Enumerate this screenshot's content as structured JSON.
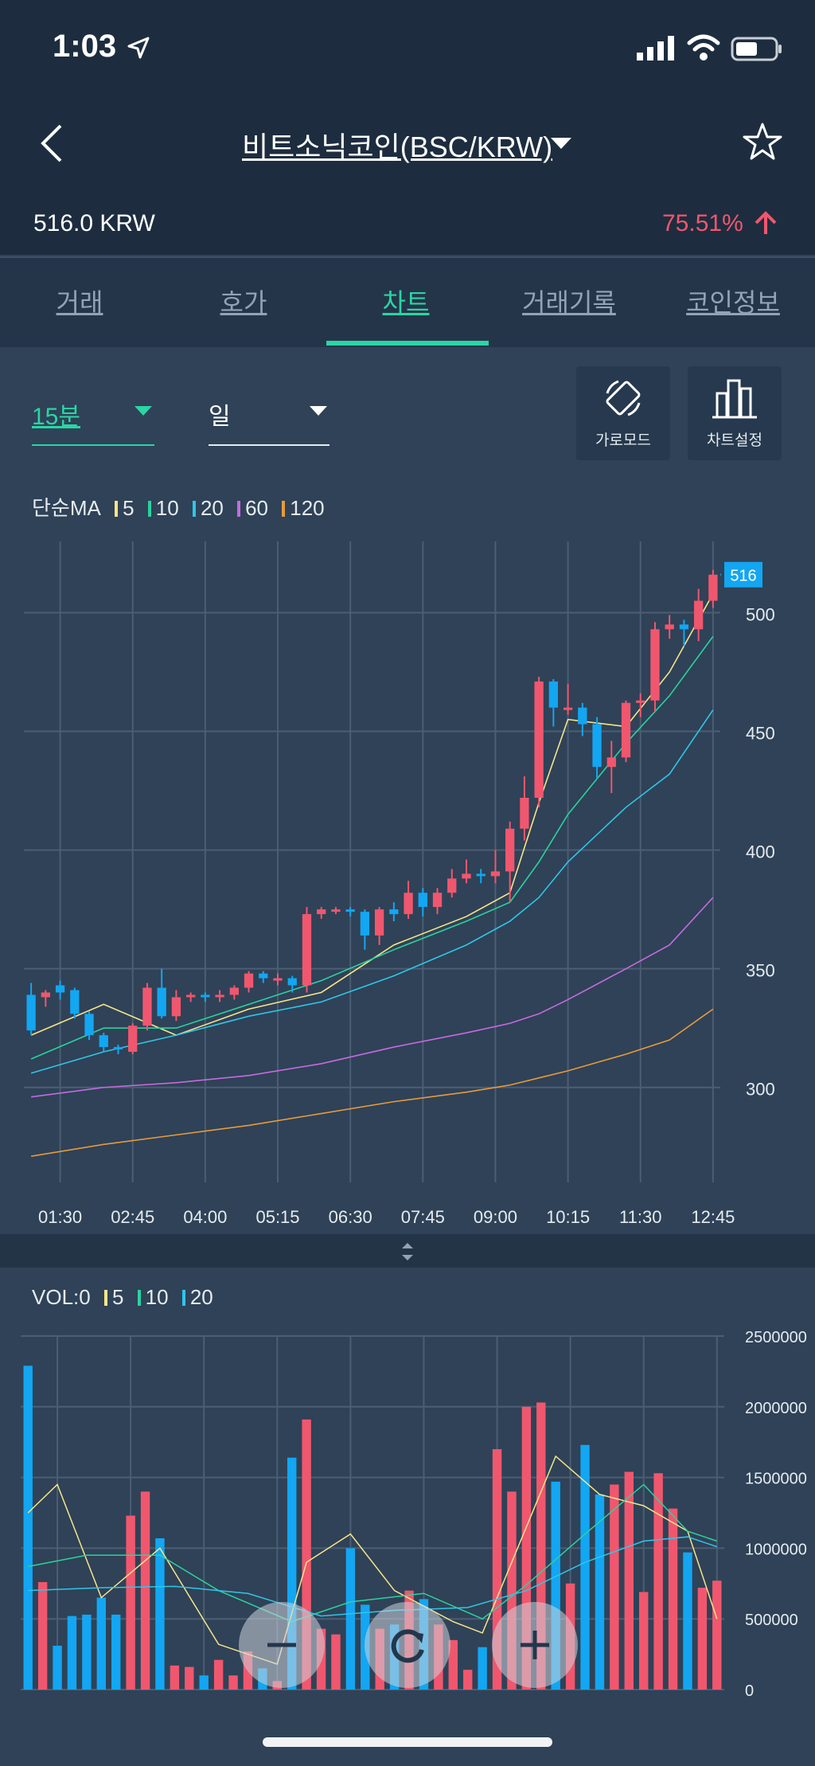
{
  "status_bar": {
    "time": "1:03"
  },
  "header": {
    "title": "비트소닉코인(BSC/KRW)",
    "price": "516.0 KRW",
    "change": "75.51%"
  },
  "tabs": [
    "거래",
    "호가",
    "차트",
    "거래기록",
    "코인정보"
  ],
  "active_tab": "차트",
  "controls": {
    "interval": "15분",
    "period": "일",
    "landscape_label": "가로모드",
    "settings_label": "차트설정"
  },
  "price_legend": {
    "label": "단순MA",
    "items": [
      "5",
      "10",
      "20",
      "60",
      "120"
    ]
  },
  "volume_legend": {
    "label": "VOL:0",
    "items": [
      "5",
      "10",
      "20"
    ]
  },
  "colors": {
    "up": "#f0576e",
    "down": "#13a6f2",
    "accent": "#29d6a4",
    "ma5": "#f7e58a",
    "ma10": "#2bd2a0",
    "ma20": "#2fc6e8",
    "ma60": "#c56ae0",
    "ma120": "#e89a3c"
  },
  "chart_data": [
    {
      "type": "candlestick",
      "x_ticks": [
        "01:30",
        "02:45",
        "04:00",
        "05:15",
        "06:30",
        "07:45",
        "09:00",
        "10:15",
        "11:30",
        "12:45"
      ],
      "y_ticks": [
        "300",
        "350",
        "400",
        "450",
        "500"
      ],
      "last_price_label": "516",
      "ylim": [
        260,
        530
      ],
      "candles": [
        [
          339,
          324,
          344,
          322
        ],
        [
          338,
          340,
          341,
          334
        ],
        [
          343,
          340,
          345,
          337
        ],
        [
          341,
          331,
          342,
          329
        ],
        [
          331,
          322,
          332,
          320
        ],
        [
          322,
          317,
          323,
          315
        ],
        [
          317,
          316,
          318,
          314
        ],
        [
          315,
          326,
          327,
          314
        ],
        [
          326,
          342,
          344,
          324
        ],
        [
          342,
          330,
          350,
          329
        ],
        [
          330,
          338,
          341,
          328
        ],
        [
          338,
          339,
          340,
          336
        ],
        [
          339,
          338,
          340,
          336
        ],
        [
          338,
          339,
          341,
          336
        ],
        [
          339,
          342,
          343,
          337
        ],
        [
          342,
          348,
          349,
          340
        ],
        [
          348,
          346,
          349,
          344
        ],
        [
          346,
          346,
          348,
          343
        ],
        [
          346,
          343,
          347,
          340
        ],
        [
          343,
          373,
          376,
          340
        ],
        [
          373,
          375,
          376,
          371
        ],
        [
          375,
          375,
          376,
          373
        ],
        [
          375,
          374,
          376,
          372
        ],
        [
          374,
          364,
          375,
          358
        ],
        [
          364,
          375,
          376,
          360
        ],
        [
          375,
          373,
          378,
          370
        ],
        [
          373,
          382,
          387,
          371
        ],
        [
          382,
          376,
          384,
          372
        ],
        [
          376,
          382,
          384,
          373
        ],
        [
          382,
          388,
          392,
          380
        ],
        [
          388,
          390,
          396,
          386
        ],
        [
          390,
          389,
          392,
          386
        ],
        [
          389,
          391,
          400,
          386
        ],
        [
          391,
          409,
          412,
          378
        ],
        [
          409,
          422,
          431,
          404
        ],
        [
          422,
          471,
          473,
          418
        ],
        [
          471,
          460,
          472,
          452
        ],
        [
          460,
          460,
          470,
          457
        ],
        [
          460,
          453,
          462,
          448
        ],
        [
          453,
          435,
          456,
          430
        ],
        [
          435,
          439,
          446,
          424
        ],
        [
          439,
          462,
          463,
          437
        ],
        [
          462,
          463,
          466,
          456
        ],
        [
          463,
          493,
          496,
          458
        ],
        [
          493,
          495,
          499,
          489
        ],
        [
          495,
          493,
          497,
          486
        ],
        [
          493,
          505,
          510,
          488
        ],
        [
          505,
          516,
          518,
          502
        ]
      ],
      "ma": {
        "5": [
          [
            0,
            322
          ],
          [
            5,
            335
          ],
          [
            10,
            322
          ],
          [
            15,
            333
          ],
          [
            20,
            340
          ],
          [
            25,
            360
          ],
          [
            30,
            372
          ],
          [
            33,
            382
          ],
          [
            35,
            420
          ],
          [
            37,
            455
          ],
          [
            41,
            452
          ],
          [
            44,
            475
          ],
          [
            47,
            508
          ]
        ],
        "10": [
          [
            0,
            312
          ],
          [
            5,
            325
          ],
          [
            10,
            325
          ],
          [
            15,
            335
          ],
          [
            20,
            345
          ],
          [
            25,
            358
          ],
          [
            30,
            370
          ],
          [
            33,
            378
          ],
          [
            35,
            395
          ],
          [
            37,
            415
          ],
          [
            41,
            445
          ],
          [
            44,
            465
          ],
          [
            47,
            490
          ]
        ],
        "20": [
          [
            0,
            306
          ],
          [
            5,
            315
          ],
          [
            10,
            322
          ],
          [
            15,
            330
          ],
          [
            20,
            336
          ],
          [
            25,
            347
          ],
          [
            30,
            360
          ],
          [
            33,
            370
          ],
          [
            35,
            380
          ],
          [
            37,
            395
          ],
          [
            41,
            418
          ],
          [
            44,
            432
          ],
          [
            47,
            459
          ]
        ],
        "60": [
          [
            0,
            296
          ],
          [
            5,
            300
          ],
          [
            10,
            302
          ],
          [
            15,
            305
          ],
          [
            20,
            310
          ],
          [
            25,
            317
          ],
          [
            30,
            323
          ],
          [
            33,
            327
          ],
          [
            35,
            331
          ],
          [
            37,
            337
          ],
          [
            41,
            350
          ],
          [
            44,
            360
          ],
          [
            47,
            380
          ]
        ],
        "120": [
          [
            0,
            271
          ],
          [
            5,
            276
          ],
          [
            10,
            280
          ],
          [
            15,
            284
          ],
          [
            20,
            289
          ],
          [
            25,
            294
          ],
          [
            30,
            298
          ],
          [
            33,
            301
          ],
          [
            35,
            304
          ],
          [
            37,
            307
          ],
          [
            41,
            314
          ],
          [
            44,
            320
          ],
          [
            47,
            333
          ]
        ]
      }
    },
    {
      "type": "bar",
      "title": "VOL",
      "y_ticks": [
        "2500000",
        "2000000",
        "1500000",
        "1000000",
        "500000",
        "0"
      ],
      "ylim": [
        0,
        2500000
      ],
      "volumes": [
        2290000,
        760000,
        310000,
        520000,
        530000,
        650000,
        530000,
        1230000,
        1400000,
        1070000,
        170000,
        160000,
        100000,
        210000,
        100000,
        270000,
        150000,
        60000,
        1640000,
        1910000,
        430000,
        390000,
        1000000,
        600000,
        430000,
        460000,
        700000,
        640000,
        460000,
        350000,
        140000,
        300000,
        1700000,
        1400000,
        2000000,
        2030000,
        1470000,
        750000,
        1730000,
        1380000,
        1450000,
        1540000,
        690000,
        1530000,
        1280000,
        970000,
        720000,
        770000
      ],
      "ma_vol": {
        "5": [
          [
            0,
            1250000
          ],
          [
            2,
            1450000
          ],
          [
            5,
            650000
          ],
          [
            9,
            1000000
          ],
          [
            13,
            320000
          ],
          [
            17,
            180000
          ],
          [
            19,
            900000
          ],
          [
            22,
            1100000
          ],
          [
            25,
            700000
          ],
          [
            29,
            480000
          ],
          [
            31,
            400000
          ],
          [
            34,
            1150000
          ],
          [
            36,
            1650000
          ],
          [
            39,
            1380000
          ],
          [
            42,
            1300000
          ],
          [
            45,
            1120000
          ],
          [
            47,
            500000
          ]
        ],
        "10": [
          [
            0,
            870000
          ],
          [
            4,
            950000
          ],
          [
            9,
            950000
          ],
          [
            13,
            700000
          ],
          [
            18,
            480000
          ],
          [
            22,
            620000
          ],
          [
            27,
            680000
          ],
          [
            31,
            500000
          ],
          [
            34,
            740000
          ],
          [
            38,
            1100000
          ],
          [
            42,
            1450000
          ],
          [
            45,
            1120000
          ],
          [
            47,
            1050000
          ]
        ],
        "20": [
          [
            0,
            700000
          ],
          [
            5,
            720000
          ],
          [
            10,
            730000
          ],
          [
            15,
            680000
          ],
          [
            20,
            520000
          ],
          [
            25,
            560000
          ],
          [
            30,
            580000
          ],
          [
            34,
            700000
          ],
          [
            38,
            900000
          ],
          [
            42,
            1050000
          ],
          [
            45,
            1080000
          ],
          [
            47,
            1010000
          ]
        ]
      }
    }
  ]
}
